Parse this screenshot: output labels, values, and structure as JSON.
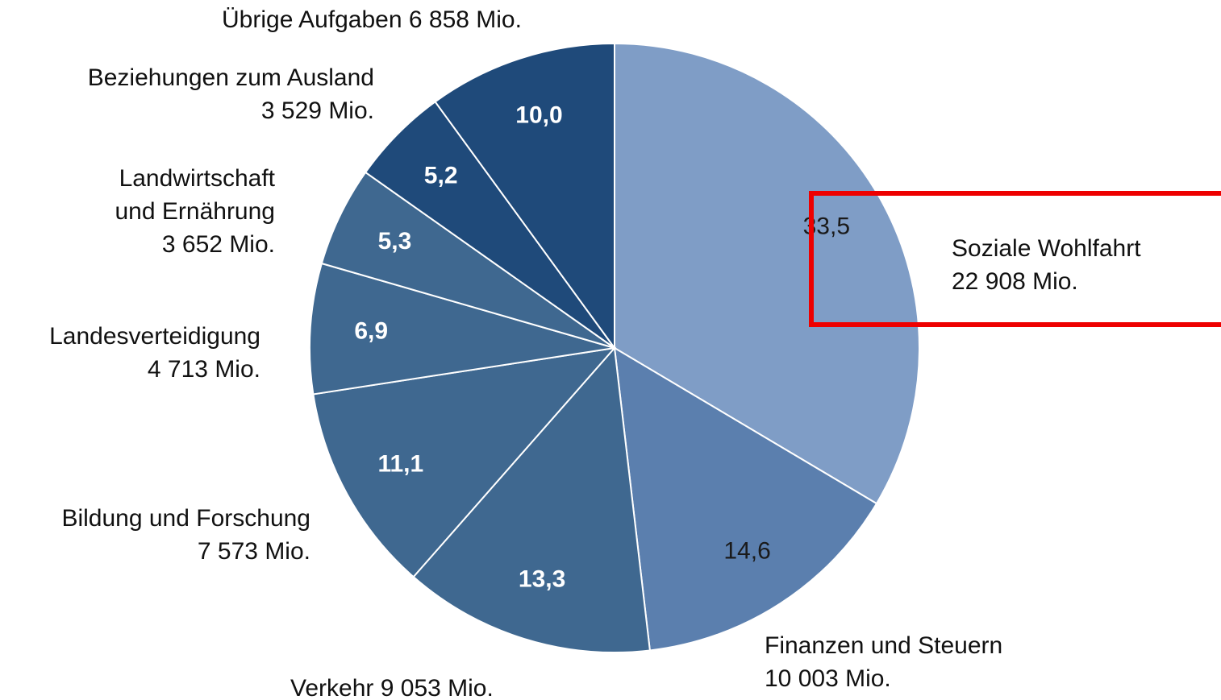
{
  "chart_data": {
    "type": "pie",
    "categories": [
      "Soziale Wohlfahrt",
      "Finanzen und Steuern",
      "Verkehr",
      "Bildung und Forschung",
      "Landesverteidigung",
      "Landwirtschaft und Ernährung",
      "Beziehungen zum Ausland",
      "Übrige Aufgaben"
    ],
    "amounts": [
      "22 908 Mio.",
      "10 003 Mio.",
      "9 053 Mio.",
      "7 573 Mio.",
      "4 713 Mio.",
      "3 652 Mio.",
      "3 529 Mio.",
      "6 858 Mio."
    ],
    "values": [
      33.5,
      14.6,
      13.3,
      11.1,
      6.9,
      5.3,
      5.2,
      10.0
    ],
    "value_labels": [
      "33,5",
      "14,6",
      "13,3",
      "11,1",
      "6,9",
      "5,3",
      "5,2",
      "10,0"
    ],
    "colors": [
      "#7f9dc6",
      "#5b7fae",
      "#3f6890",
      "#3f6890",
      "#3f6890",
      "#3f6890",
      "#1f4a7a",
      "#1f4a7a"
    ]
  }
}
